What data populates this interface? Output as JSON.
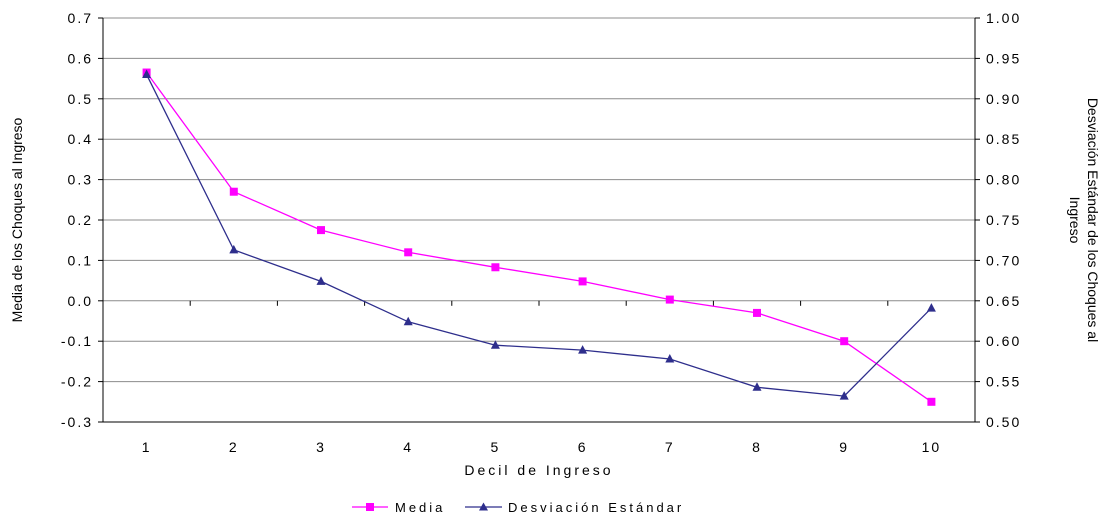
{
  "chart_data": {
    "type": "line",
    "xlabel": "Decil de Ingreso",
    "ylabel_left": "Media de los Choques al Ingreso",
    "ylabel_right_line1": "Desviación Estándar de los Choques al",
    "ylabel_right_line2": "Ingreso",
    "categories": [
      "1",
      "2",
      "3",
      "4",
      "5",
      "6",
      "7",
      "8",
      "9",
      "10"
    ],
    "y_left": {
      "min": -0.3,
      "max": 0.7,
      "step": 0.1,
      "tick_labels": [
        "0.7",
        "0.6",
        "0.5",
        "0.4",
        "0.3",
        "0.2",
        "0.1",
        "0.0",
        "-0.1",
        "-0.2",
        "-0.3"
      ]
    },
    "y_right": {
      "min": 0.5,
      "max": 1.0,
      "step": 0.05,
      "tick_labels": [
        "1.00",
        "0.95",
        "0.90",
        "0.85",
        "0.80",
        "0.75",
        "0.70",
        "0.65",
        "0.60",
        "0.55",
        "0.50"
      ]
    },
    "grid": "horizontal",
    "legend_position": "bottom",
    "series": [
      {
        "name": "Media",
        "axis": "left",
        "color": "#FF00FF",
        "marker": "square",
        "values": [
          0.565,
          0.27,
          0.175,
          0.12,
          0.083,
          0.048,
          0.003,
          -0.03,
          -0.1,
          -0.25
        ]
      },
      {
        "name": "Desviación Estándar",
        "axis": "right",
        "color": "#2E2E8C",
        "marker": "triangle",
        "values": [
          0.93,
          0.713,
          0.674,
          0.624,
          0.595,
          0.589,
          0.578,
          0.543,
          0.532,
          0.641
        ]
      }
    ]
  }
}
